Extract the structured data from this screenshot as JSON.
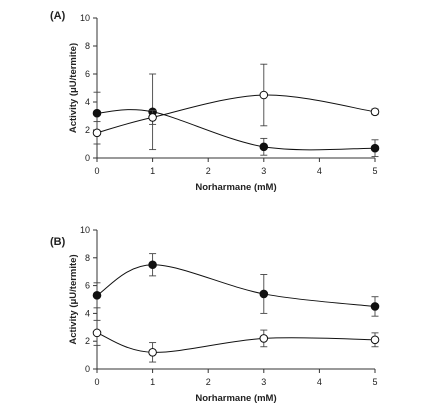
{
  "chart_data": [
    {
      "type": "line",
      "panel_label": "(A)",
      "xlabel": "Norharmane (mM)",
      "ylabel": "Activity (μU/termite)",
      "xlim": [
        0,
        5
      ],
      "ylim": [
        0,
        10
      ],
      "xticks": [
        0,
        1,
        2,
        3,
        4,
        5
      ],
      "yticks": [
        0,
        2,
        4,
        6,
        8,
        10
      ],
      "grid": false,
      "series": [
        {
          "marker": "filled-circle",
          "color": "#111111",
          "x": [
            0,
            1,
            3,
            5
          ],
          "y": [
            3.2,
            3.3,
            0.8,
            0.7
          ],
          "err": [
            1.5,
            2.7,
            0.6,
            0.6
          ]
        },
        {
          "marker": "open-circle",
          "color": "#111111",
          "x": [
            0,
            1,
            3,
            5
          ],
          "y": [
            1.8,
            2.9,
            4.5,
            3.3
          ],
          "err": [
            0.8,
            0.5,
            2.2,
            0.2
          ]
        }
      ]
    },
    {
      "type": "line",
      "panel_label": "(B)",
      "xlabel": "Norharmane (mM)",
      "ylabel": "Activity (μU/termite)",
      "xlim": [
        0,
        5
      ],
      "ylim": [
        0,
        10
      ],
      "xticks": [
        0,
        1,
        2,
        3,
        4,
        5
      ],
      "yticks": [
        0,
        2,
        4,
        6,
        8,
        10
      ],
      "grid": false,
      "series": [
        {
          "marker": "filled-circle",
          "color": "#111111",
          "x": [
            0,
            1,
            3,
            5
          ],
          "y": [
            5.3,
            7.5,
            5.4,
            4.5
          ],
          "err": [
            0.9,
            0.8,
            1.4,
            0.7
          ]
        },
        {
          "marker": "open-circle",
          "color": "#111111",
          "x": [
            0,
            1,
            3,
            5
          ],
          "y": [
            2.6,
            1.2,
            2.2,
            2.1
          ],
          "err": [
            0.9,
            0.7,
            0.6,
            0.5
          ]
        }
      ]
    }
  ]
}
